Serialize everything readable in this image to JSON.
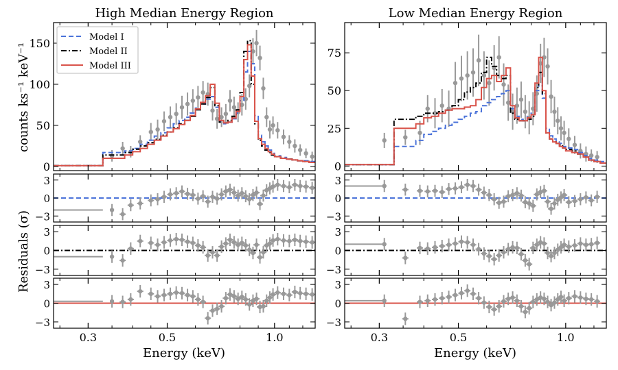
{
  "chart_data": {
    "type": "step-spectrum-with-residuals",
    "xlabel": "Energy (keV)",
    "ylabel_top": "counts ks⁻¹ keV⁻¹",
    "ylabel_residuals": "Residuals (σ)",
    "xscale": "log",
    "xlim": [
      0.24,
      1.3
    ],
    "xticks": [
      0.3,
      0.5,
      1.0
    ],
    "xtick_labels": [
      "0.3",
      "0.5",
      "1.0"
    ],
    "residual_ylim": [
      -4,
      4
    ],
    "residual_ticks": [
      3,
      0,
      -3
    ],
    "residual_tick_labels": [
      "3",
      "0",
      "−3"
    ],
    "models": [
      {
        "name": "Model I",
        "color": "#4a72d9",
        "dash": "dashed"
      },
      {
        "name": "Model II",
        "color": "#000000",
        "dash": "dashdot"
      },
      {
        "name": "Model III",
        "color": "#d9534a",
        "dash": "solid"
      }
    ],
    "data_color": "#999999",
    "bin_edges": [
      0.24,
      0.33,
      0.38,
      0.4,
      0.42,
      0.44,
      0.46,
      0.48,
      0.5,
      0.52,
      0.54,
      0.56,
      0.58,
      0.6,
      0.62,
      0.64,
      0.66,
      0.68,
      0.7,
      0.72,
      0.74,
      0.76,
      0.78,
      0.8,
      0.82,
      0.84,
      0.86,
      0.88,
      0.9,
      0.92,
      0.94,
      0.96,
      0.98,
      1.0,
      1.04,
      1.08,
      1.12,
      1.16,
      1.2,
      1.25,
      1.3
    ],
    "panels": [
      {
        "title": "High Median Energy Region",
        "ylim": [
          -5,
          175
        ],
        "yticks": [
          0,
          50,
          100,
          150
        ],
        "ytick_labels": [
          "0",
          "50",
          "100",
          "150"
        ],
        "legend": "top-left",
        "model_values": [
          [
            1,
            17,
            19,
            22,
            27,
            32,
            37,
            41,
            47,
            52,
            56,
            60,
            65,
            71,
            76,
            82,
            85,
            72,
            55,
            52,
            54,
            58,
            65,
            80,
            115,
            140,
            125,
            62,
            38,
            30,
            25,
            20,
            16,
            13,
            11,
            9,
            8,
            7,
            7,
            6
          ],
          [
            1,
            14,
            17,
            21,
            25,
            29,
            33,
            38,
            42,
            47,
            52,
            56,
            61,
            69,
            76,
            84,
            96,
            74,
            54,
            53,
            56,
            61,
            69,
            90,
            140,
            153,
            100,
            52,
            32,
            25,
            20,
            17,
            14,
            12,
            10,
            9,
            8,
            7,
            6,
            5
          ],
          [
            1,
            10,
            14,
            18,
            22,
            27,
            32,
            37,
            42,
            46,
            51,
            56,
            62,
            70,
            78,
            86,
            100,
            77,
            56,
            53,
            54,
            59,
            67,
            85,
            130,
            148,
            110,
            55,
            34,
            27,
            22,
            18,
            15,
            12,
            10,
            9,
            8,
            7,
            6,
            5
          ]
        ],
        "data_points": [
          {
            "x": 0.35,
            "y": 13,
            "e": 7
          },
          {
            "x": 0.375,
            "y": 22,
            "e": 8
          },
          {
            "x": 0.395,
            "y": 18,
            "e": 7
          },
          {
            "x": 0.42,
            "y": 30,
            "e": 8
          },
          {
            "x": 0.45,
            "y": 42,
            "e": 11
          },
          {
            "x": 0.47,
            "y": 45,
            "e": 12
          },
          {
            "x": 0.49,
            "y": 55,
            "e": 12
          },
          {
            "x": 0.51,
            "y": 60,
            "e": 13
          },
          {
            "x": 0.53,
            "y": 64,
            "e": 13
          },
          {
            "x": 0.55,
            "y": 72,
            "e": 14
          },
          {
            "x": 0.57,
            "y": 76,
            "e": 14
          },
          {
            "x": 0.59,
            "y": 80,
            "e": 14
          },
          {
            "x": 0.61,
            "y": 84,
            "e": 14
          },
          {
            "x": 0.63,
            "y": 90,
            "e": 14
          },
          {
            "x": 0.65,
            "y": 88,
            "e": 14
          },
          {
            "x": 0.67,
            "y": 68,
            "e": 12
          },
          {
            "x": 0.69,
            "y": 58,
            "e": 12
          },
          {
            "x": 0.71,
            "y": 60,
            "e": 12
          },
          {
            "x": 0.73,
            "y": 64,
            "e": 12
          },
          {
            "x": 0.75,
            "y": 80,
            "e": 13
          },
          {
            "x": 0.77,
            "y": 72,
            "e": 13
          },
          {
            "x": 0.79,
            "y": 66,
            "e": 12
          },
          {
            "x": 0.81,
            "y": 75,
            "e": 13
          },
          {
            "x": 0.83,
            "y": 82,
            "e": 13
          },
          {
            "x": 0.85,
            "y": 98,
            "e": 14
          },
          {
            "x": 0.87,
            "y": 140,
            "e": 16
          },
          {
            "x": 0.89,
            "y": 150,
            "e": 16
          },
          {
            "x": 0.91,
            "y": 132,
            "e": 15
          },
          {
            "x": 0.93,
            "y": 95,
            "e": 13
          },
          {
            "x": 0.95,
            "y": 60,
            "e": 12
          },
          {
            "x": 0.97,
            "y": 45,
            "e": 11
          },
          {
            "x": 0.99,
            "y": 50,
            "e": 11
          },
          {
            "x": 1.02,
            "y": 44,
            "e": 10
          },
          {
            "x": 1.06,
            "y": 36,
            "e": 9
          },
          {
            "x": 1.1,
            "y": 30,
            "e": 8
          },
          {
            "x": 1.14,
            "y": 25,
            "e": 8
          },
          {
            "x": 1.18,
            "y": 20,
            "e": 7
          },
          {
            "x": 1.225,
            "y": 16,
            "e": 6
          },
          {
            "x": 1.275,
            "y": 12,
            "e": 6
          }
        ],
        "residuals": [
          [
            -2.0,
            -2.7,
            -1.2,
            -0.9,
            -0.4,
            -0.2,
            0.2,
            0.6,
            0.8,
            1.1,
            0.7,
            0.5,
            -0.1,
            0.3,
            -0.6,
            0.2,
            -0.1,
            0.6,
            1.1,
            1.4,
            0.9,
            0.4,
            0.8,
            0.3,
            -0.2,
            0.5,
            0.9,
            -1.0,
            0.4,
            1.3,
            1.6,
            1.9,
            2.2,
            2.0,
            1.8,
            2.2,
            2.0,
            1.9,
            1.7
          ],
          [
            -1.0,
            -1.6,
            0.3,
            1.5,
            1.2,
            0.9,
            1.3,
            1.6,
            1.8,
            1.7,
            1.4,
            1.2,
            0.8,
            0.5,
            -0.8,
            -0.3,
            -0.8,
            0.6,
            1.1,
            1.7,
            1.3,
            0.9,
            1.2,
            0.8,
            0.1,
            -0.4,
            0.9,
            -1.1,
            -0.3,
            0.8,
            1.1,
            1.6,
            1.8,
            1.6,
            1.5,
            1.7,
            1.5,
            1.4,
            1.3
          ],
          [
            0.3,
            0.2,
            0.6,
            1.9,
            1.5,
            1.1,
            1.3,
            1.5,
            1.7,
            1.6,
            1.3,
            1.1,
            0.6,
            0.2,
            -2.4,
            -1.2,
            -0.9,
            -0.5,
            0.8,
            1.4,
            1.1,
            0.7,
            1.0,
            0.6,
            -0.2,
            0.4,
            0.7,
            -0.6,
            -0.5,
            0.4,
            0.9,
            1.4,
            1.7,
            1.5,
            1.3,
            1.8,
            1.6,
            1.5,
            1.4
          ]
        ]
      },
      {
        "title": "Low Median Energy Region",
        "ylim": [
          -3,
          95
        ],
        "yticks": [
          0,
          25,
          50,
          75
        ],
        "ytick_labels": [
          "0",
          "25",
          "50",
          "75"
        ],
        "legend": "none",
        "model_values": [
          [
            1,
            13,
            17,
            21,
            23,
            25,
            27,
            29,
            31,
            33,
            35,
            36,
            40,
            42,
            44,
            46,
            48,
            50,
            38,
            33,
            31,
            30,
            33,
            35,
            50,
            60,
            45,
            25,
            20,
            18,
            16,
            15,
            13,
            12,
            11,
            9,
            7,
            5,
            4,
            3
          ],
          [
            1,
            31,
            33,
            35,
            35,
            36,
            37,
            40,
            44,
            49,
            52,
            55,
            62,
            72,
            66,
            60,
            58,
            60,
            35,
            31,
            30,
            30,
            31,
            33,
            52,
            62,
            48,
            22,
            18,
            16,
            15,
            14,
            12,
            11,
            10,
            8,
            6,
            4,
            3,
            2
          ],
          [
            1,
            25,
            28,
            32,
            33,
            35,
            37,
            38,
            38,
            39,
            40,
            44,
            52,
            58,
            60,
            56,
            60,
            65,
            40,
            32,
            30,
            30,
            32,
            34,
            55,
            72,
            50,
            22,
            18,
            16,
            15,
            13,
            12,
            10,
            9,
            8,
            6,
            4,
            3,
            2
          ]
        ],
        "data_points": [
          {
            "x": 0.31,
            "y": 17,
            "e": 5
          },
          {
            "x": 0.355,
            "y": 19,
            "e": 5
          },
          {
            "x": 0.39,
            "y": 22,
            "e": 8
          },
          {
            "x": 0.41,
            "y": 38,
            "e": 9
          },
          {
            "x": 0.43,
            "y": 35,
            "e": 10
          },
          {
            "x": 0.45,
            "y": 40,
            "e": 11
          },
          {
            "x": 0.47,
            "y": 38,
            "e": 12
          },
          {
            "x": 0.49,
            "y": 55,
            "e": 14
          },
          {
            "x": 0.51,
            "y": 58,
            "e": 15
          },
          {
            "x": 0.53,
            "y": 60,
            "e": 16
          },
          {
            "x": 0.55,
            "y": 62,
            "e": 16
          },
          {
            "x": 0.57,
            "y": 70,
            "e": 17
          },
          {
            "x": 0.59,
            "y": 60,
            "e": 16
          },
          {
            "x": 0.61,
            "y": 55,
            "e": 15
          },
          {
            "x": 0.63,
            "y": 65,
            "e": 15
          },
          {
            "x": 0.65,
            "y": 72,
            "e": 14
          },
          {
            "x": 0.67,
            "y": 54,
            "e": 14
          },
          {
            "x": 0.69,
            "y": 42,
            "e": 12
          },
          {
            "x": 0.71,
            "y": 36,
            "e": 12
          },
          {
            "x": 0.73,
            "y": 40,
            "e": 12
          },
          {
            "x": 0.75,
            "y": 44,
            "e": 12
          },
          {
            "x": 0.77,
            "y": 36,
            "e": 11
          },
          {
            "x": 0.79,
            "y": 32,
            "e": 11
          },
          {
            "x": 0.81,
            "y": 38,
            "e": 11
          },
          {
            "x": 0.83,
            "y": 48,
            "e": 12
          },
          {
            "x": 0.85,
            "y": 68,
            "e": 13
          },
          {
            "x": 0.87,
            "y": 72,
            "e": 13
          },
          {
            "x": 0.89,
            "y": 66,
            "e": 12
          },
          {
            "x": 0.91,
            "y": 46,
            "e": 11
          },
          {
            "x": 0.93,
            "y": 36,
            "e": 10
          },
          {
            "x": 0.95,
            "y": 30,
            "e": 9
          },
          {
            "x": 0.97,
            "y": 25,
            "e": 8
          },
          {
            "x": 0.99,
            "y": 22,
            "e": 8
          },
          {
            "x": 1.02,
            "y": 18,
            "e": 7
          },
          {
            "x": 1.06,
            "y": 14,
            "e": 6
          },
          {
            "x": 1.1,
            "y": 10,
            "e": 5
          },
          {
            "x": 1.14,
            "y": 8,
            "e": 5
          },
          {
            "x": 1.18,
            "y": 7,
            "e": 4
          },
          {
            "x": 1.225,
            "y": 6,
            "e": 4
          }
        ],
        "residuals": [
          [
            2.0,
            1.4,
            1.2,
            1.1,
            1.2,
            1.0,
            1.5,
            1.6,
            1.8,
            2.2,
            2.0,
            1.4,
            0.9,
            0.5,
            -0.2,
            -0.8,
            -0.6,
            0.3,
            0.5,
            0.8,
            0.4,
            -0.7,
            -0.9,
            -1.3,
            0.6,
            1.0,
            1.2,
            -0.6,
            -1.8,
            -0.9,
            -0.3,
            0.1,
            0.5,
            -0.7,
            -0.5,
            -0.2,
            0.1,
            -0.4,
            0.2
          ],
          [
            1.0,
            -1.2,
            0.4,
            0.3,
            0.5,
            0.7,
            0.9,
            1.1,
            1.4,
            1.3,
            0.9,
            0.2,
            -0.5,
            -0.9,
            -1.4,
            -0.8,
            -0.3,
            0.2,
            0.5,
            0.4,
            -0.6,
            -1.6,
            -2.2,
            0.4,
            0.9,
            1.3,
            1.1,
            -0.4,
            -0.9,
            -0.4,
            0.1,
            0.5,
            0.9,
            0.6,
            0.8,
            1.1,
            0.9,
            1.0,
            1.2
          ],
          [
            0.4,
            -2.5,
            0.2,
            0.4,
            0.6,
            0.8,
            1.0,
            1.3,
            1.6,
            2.0,
            1.5,
            0.8,
            0.1,
            -0.6,
            -1.0,
            -0.5,
            0.3,
            0.7,
            0.9,
            0.4,
            -0.5,
            -1.4,
            -0.8,
            0.2,
            0.6,
            0.9,
            0.7,
            0.2,
            -0.3,
            0.1,
            0.6,
            1.0,
            0.4,
            0.8,
            1.1,
            0.9,
            0.7,
            0.6,
            0.3
          ]
        ]
      }
    ]
  }
}
